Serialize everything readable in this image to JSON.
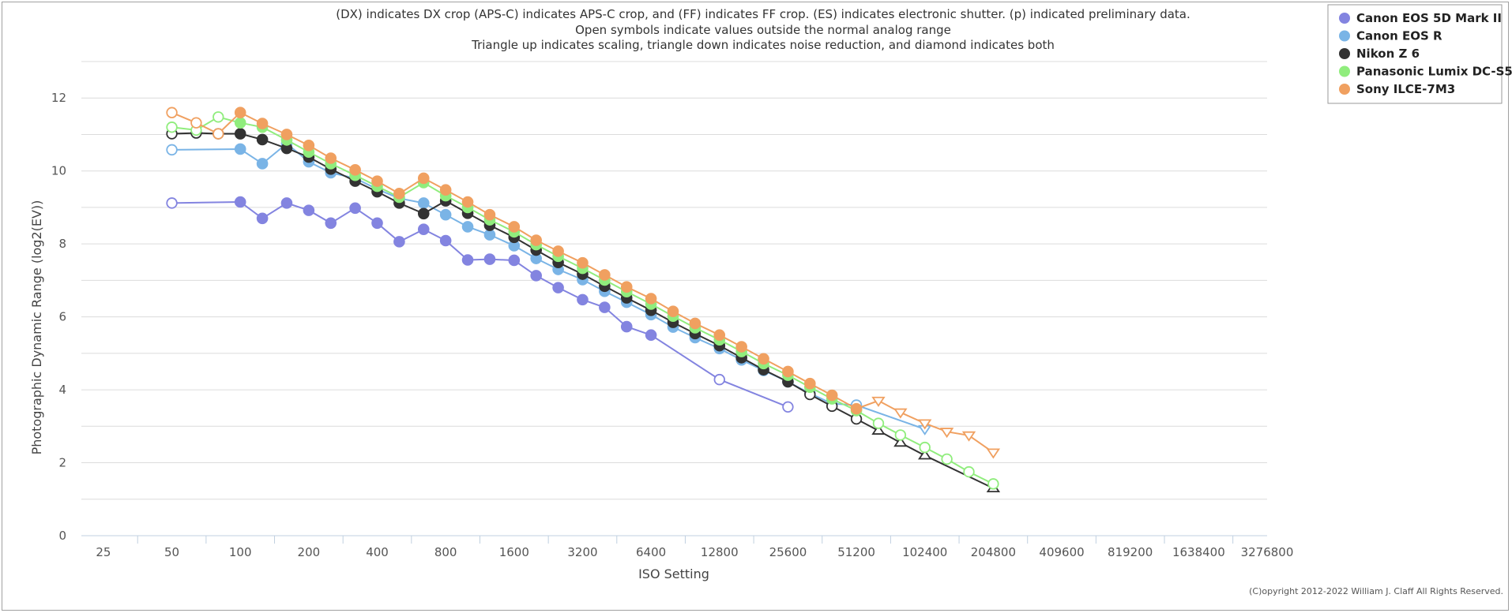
{
  "chart_data": {
    "type": "line",
    "notes": [
      "(DX) indicates DX crop (APS-C) indicates APS-C crop, and (FF) indicates FF crop. (ES) indicates electronic shutter. (p) indicated preliminary data.",
      "Open symbols indicate values outside the normal analog range",
      "Triangle up indicates scaling, triangle down indicates noise reduction, and diamond indicates both"
    ],
    "xlabel": "ISO Setting",
    "ylabel": "Photographic Dynamic Range (log2(EV))",
    "x_scale": "log2",
    "x_ticks": [
      "25",
      "50",
      "100",
      "200",
      "400",
      "800",
      "1600",
      "3200",
      "6400",
      "12800",
      "25600",
      "51200",
      "102400",
      "204800",
      "409600",
      "819200",
      "1638400",
      "3276800"
    ],
    "xlim": [
      20,
      3276800
    ],
    "y_ticks": [
      "0",
      "2",
      "4",
      "6",
      "8",
      "10",
      "12"
    ],
    "ylim": [
      0,
      13
    ],
    "grid": "horizontal",
    "legend_position": "top-right",
    "copyright": "(C)opyright 2012-2022 William J. Claff All Rights Reserved.",
    "series": [
      {
        "name": "Canon EOS 5D Mark II",
        "color": "#8384e0",
        "points": [
          [
            50,
            9.12,
            "open"
          ],
          [
            100,
            9.15,
            "filled"
          ],
          [
            125,
            8.7,
            "filled"
          ],
          [
            160,
            9.12,
            "filled"
          ],
          [
            200,
            8.92,
            "filled"
          ],
          [
            250,
            8.57,
            "filled"
          ],
          [
            320,
            8.98,
            "filled"
          ],
          [
            400,
            8.57,
            "filled"
          ],
          [
            500,
            8.06,
            "filled"
          ],
          [
            640,
            8.4,
            "filled"
          ],
          [
            800,
            8.09,
            "filled"
          ],
          [
            1000,
            7.56,
            "filled"
          ],
          [
            1250,
            7.58,
            "filled"
          ],
          [
            1600,
            7.55,
            "filled"
          ],
          [
            2000,
            7.13,
            "filled"
          ],
          [
            2500,
            6.8,
            "filled"
          ],
          [
            3200,
            6.47,
            "filled"
          ],
          [
            4000,
            6.26,
            "filled"
          ],
          [
            5000,
            5.73,
            "filled"
          ],
          [
            6400,
            5.5,
            "filled"
          ],
          [
            12800,
            4.28,
            "open"
          ],
          [
            25600,
            3.53,
            "open"
          ]
        ]
      },
      {
        "name": "Canon EOS R",
        "color": "#7ab4e6",
        "points": [
          [
            50,
            10.58,
            "open"
          ],
          [
            100,
            10.6,
            "filled"
          ],
          [
            125,
            10.2,
            "filled"
          ],
          [
            160,
            10.75,
            "filled"
          ],
          [
            200,
            10.25,
            "filled"
          ],
          [
            250,
            9.95,
            "filled"
          ],
          [
            320,
            9.8,
            "filled"
          ],
          [
            400,
            9.5,
            "filled"
          ],
          [
            500,
            9.25,
            "filled"
          ],
          [
            640,
            9.12,
            "filled"
          ],
          [
            800,
            8.8,
            "filled"
          ],
          [
            1000,
            8.47,
            "filled"
          ],
          [
            1250,
            8.25,
            "filled"
          ],
          [
            1600,
            7.95,
            "filled"
          ],
          [
            2000,
            7.6,
            "filled"
          ],
          [
            2500,
            7.3,
            "filled"
          ],
          [
            3200,
            7.02,
            "filled"
          ],
          [
            4000,
            6.7,
            "filled"
          ],
          [
            5000,
            6.4,
            "filled"
          ],
          [
            6400,
            6.06,
            "filled"
          ],
          [
            8000,
            5.72,
            "filled"
          ],
          [
            10000,
            5.43,
            "filled"
          ],
          [
            12800,
            5.13,
            "filled"
          ],
          [
            16000,
            4.82,
            "filled"
          ],
          [
            20000,
            4.53,
            "filled"
          ],
          [
            25600,
            4.22,
            "filled"
          ],
          [
            32000,
            3.9,
            "filled"
          ],
          [
            40000,
            3.62,
            "filled"
          ],
          [
            51200,
            3.58,
            "open"
          ],
          [
            102400,
            2.92,
            "open-triangle-down"
          ]
        ]
      },
      {
        "name": "Nikon Z 6",
        "color": "#333333",
        "points": [
          [
            50,
            11.02,
            "open"
          ],
          [
            64,
            11.04,
            "open"
          ],
          [
            80,
            11.02,
            "open"
          ],
          [
            100,
            11.02,
            "filled"
          ],
          [
            125,
            10.86,
            "filled"
          ],
          [
            160,
            10.62,
            "filled"
          ],
          [
            200,
            10.38,
            "filled"
          ],
          [
            250,
            10.05,
            "filled"
          ],
          [
            320,
            9.72,
            "filled"
          ],
          [
            400,
            9.43,
            "filled"
          ],
          [
            500,
            9.12,
            "filled"
          ],
          [
            640,
            8.83,
            "filled"
          ],
          [
            800,
            9.18,
            "filled"
          ],
          [
            1000,
            8.84,
            "filled"
          ],
          [
            1250,
            8.51,
            "filled"
          ],
          [
            1600,
            8.18,
            "filled"
          ],
          [
            2000,
            7.83,
            "filled"
          ],
          [
            2500,
            7.49,
            "filled"
          ],
          [
            3200,
            7.17,
            "filled"
          ],
          [
            4000,
            6.84,
            "filled"
          ],
          [
            5000,
            6.52,
            "filled"
          ],
          [
            6400,
            6.18,
            "filled"
          ],
          [
            8000,
            5.85,
            "filled"
          ],
          [
            10000,
            5.54,
            "filled"
          ],
          [
            12800,
            5.21,
            "filled"
          ],
          [
            16000,
            4.88,
            "filled"
          ],
          [
            20000,
            4.55,
            "filled"
          ],
          [
            25600,
            4.22,
            "filled"
          ],
          [
            32000,
            3.87,
            "open"
          ],
          [
            40000,
            3.55,
            "open"
          ],
          [
            51200,
            3.2,
            "open"
          ],
          [
            64000,
            2.88,
            "open-triangle-up"
          ],
          [
            80000,
            2.55,
            "open-triangle-up"
          ],
          [
            102400,
            2.2,
            "open-triangle-up"
          ],
          [
            204800,
            1.3,
            "open-triangle-up"
          ]
        ]
      },
      {
        "name": "Panasonic Lumix DC-S5",
        "color": "#90ed7d",
        "points": [
          [
            50,
            11.2,
            "open"
          ],
          [
            64,
            11.12,
            "open"
          ],
          [
            80,
            11.48,
            "open"
          ],
          [
            100,
            11.32,
            "filled"
          ],
          [
            125,
            11.2,
            "filled"
          ],
          [
            160,
            10.85,
            "filled"
          ],
          [
            200,
            10.52,
            "filled"
          ],
          [
            250,
            10.2,
            "filled"
          ],
          [
            320,
            9.88,
            "filled"
          ],
          [
            400,
            9.58,
            "filled"
          ],
          [
            500,
            9.28,
            "filled"
          ],
          [
            640,
            9.68,
            "filled"
          ],
          [
            800,
            9.32,
            "filled"
          ],
          [
            1000,
            9.0,
            "filled"
          ],
          [
            1250,
            8.66,
            "filled"
          ],
          [
            1600,
            8.33,
            "filled"
          ],
          [
            2000,
            7.98,
            "filled"
          ],
          [
            2500,
            7.66,
            "filled"
          ],
          [
            3200,
            7.33,
            "filled"
          ],
          [
            4000,
            7.01,
            "filled"
          ],
          [
            5000,
            6.69,
            "filled"
          ],
          [
            6400,
            6.35,
            "filled"
          ],
          [
            8000,
            6.02,
            "filled"
          ],
          [
            10000,
            5.7,
            "filled"
          ],
          [
            12800,
            5.37,
            "filled"
          ],
          [
            16000,
            5.05,
            "filled"
          ],
          [
            20000,
            4.72,
            "filled"
          ],
          [
            25600,
            4.4,
            "filled"
          ],
          [
            32000,
            4.07,
            "filled"
          ],
          [
            40000,
            3.75,
            "filled"
          ],
          [
            51200,
            3.43,
            "filled"
          ],
          [
            64000,
            3.08,
            "open"
          ],
          [
            80000,
            2.76,
            "open"
          ],
          [
            102400,
            2.42,
            "open"
          ],
          [
            128000,
            2.1,
            "open"
          ],
          [
            160000,
            1.75,
            "open"
          ],
          [
            204800,
            1.42,
            "open"
          ]
        ]
      },
      {
        "name": "Sony ILCE-7M3",
        "color": "#f0a060",
        "points": [
          [
            50,
            11.6,
            "open"
          ],
          [
            64,
            11.32,
            "open"
          ],
          [
            80,
            11.02,
            "open"
          ],
          [
            100,
            11.6,
            "filled"
          ],
          [
            125,
            11.3,
            "filled"
          ],
          [
            160,
            11.0,
            "filled"
          ],
          [
            200,
            10.7,
            "filled"
          ],
          [
            250,
            10.35,
            "filled"
          ],
          [
            320,
            10.03,
            "filled"
          ],
          [
            400,
            9.72,
            "filled"
          ],
          [
            500,
            9.38,
            "filled"
          ],
          [
            640,
            9.8,
            "filled"
          ],
          [
            800,
            9.48,
            "filled"
          ],
          [
            1000,
            9.15,
            "filled"
          ],
          [
            1250,
            8.8,
            "filled"
          ],
          [
            1600,
            8.47,
            "filled"
          ],
          [
            2000,
            8.1,
            "filled"
          ],
          [
            2500,
            7.8,
            "filled"
          ],
          [
            3200,
            7.48,
            "filled"
          ],
          [
            4000,
            7.15,
            "filled"
          ],
          [
            5000,
            6.82,
            "filled"
          ],
          [
            6400,
            6.5,
            "filled"
          ],
          [
            8000,
            6.15,
            "filled"
          ],
          [
            10000,
            5.82,
            "filled"
          ],
          [
            12800,
            5.5,
            "filled"
          ],
          [
            16000,
            5.18,
            "filled"
          ],
          [
            20000,
            4.85,
            "filled"
          ],
          [
            25600,
            4.5,
            "filled"
          ],
          [
            32000,
            4.17,
            "filled"
          ],
          [
            40000,
            3.85,
            "filled"
          ],
          [
            51200,
            3.48,
            "filled"
          ],
          [
            64000,
            3.7,
            "open-triangle-down"
          ],
          [
            80000,
            3.38,
            "open-triangle-down"
          ],
          [
            102400,
            3.08,
            "open-triangle-down"
          ],
          [
            128000,
            2.85,
            "open-triangle-down"
          ],
          [
            160000,
            2.75,
            "open-triangle-down"
          ],
          [
            204800,
            2.28,
            "open-triangle-down"
          ]
        ]
      }
    ]
  }
}
